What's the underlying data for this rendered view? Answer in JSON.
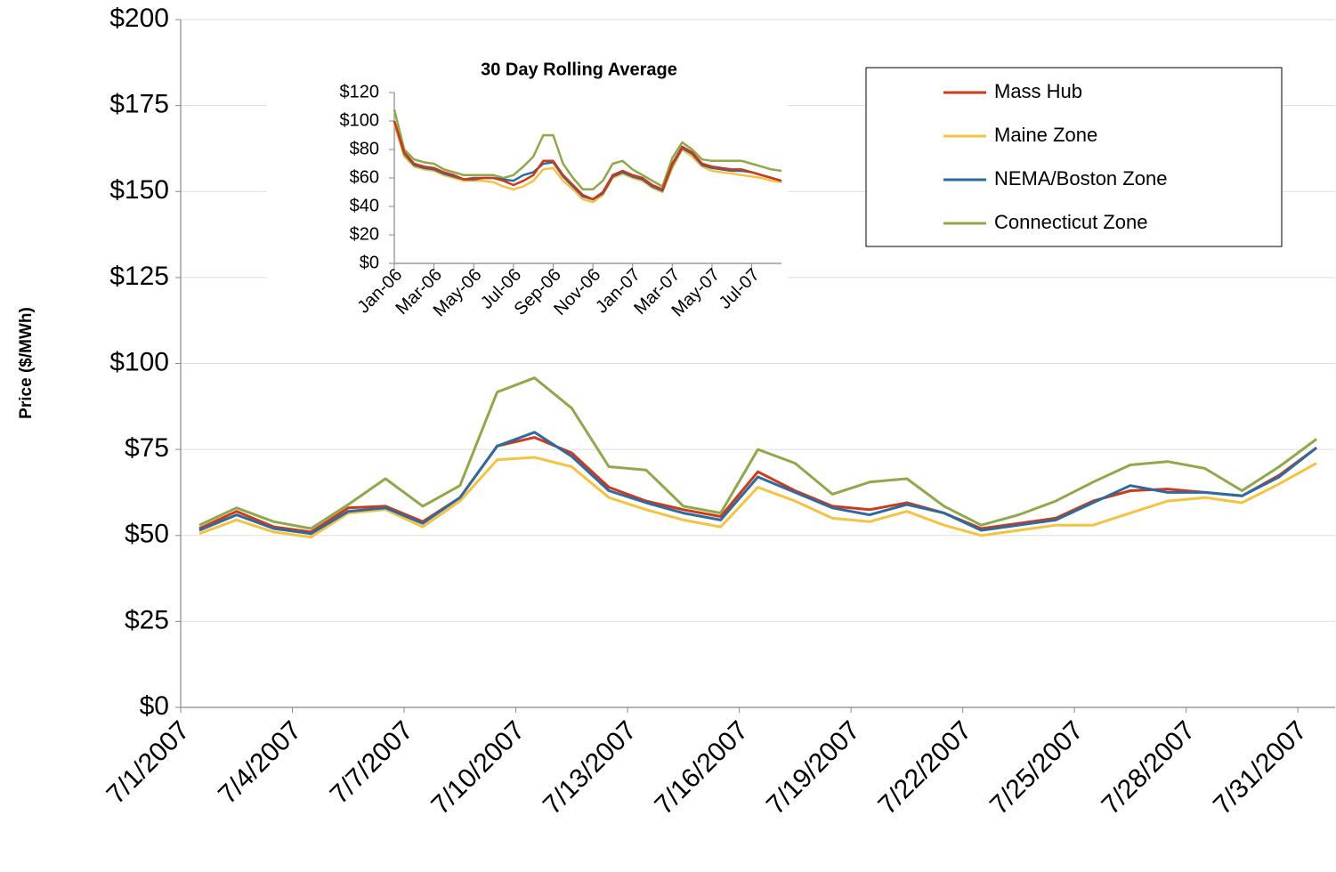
{
  "chart_data": [
    {
      "type": "line",
      "y_label": "Price ($/MWh)",
      "categories": [
        "7/1/2007",
        null,
        null,
        "7/4/2007",
        null,
        null,
        "7/7/2007",
        null,
        null,
        "7/10/2007",
        null,
        null,
        "7/13/2007",
        null,
        null,
        "7/16/2007",
        null,
        null,
        "7/19/2007",
        null,
        null,
        "7/22/2007",
        null,
        null,
        "7/25/2007",
        null,
        null,
        "7/28/2007",
        null,
        null,
        "7/31/2007"
      ],
      "ylim": [
        0,
        200
      ],
      "yticks": [
        {
          "value": 0,
          "label": "$0"
        },
        {
          "value": 25,
          "label": "$25"
        },
        {
          "value": 50,
          "label": "$50"
        },
        {
          "value": 75,
          "label": "$75"
        },
        {
          "value": 100,
          "label": "$100"
        },
        {
          "value": 125,
          "label": "$125"
        },
        {
          "value": 150,
          "label": "$150"
        },
        {
          "value": 175,
          "label": "$175"
        },
        {
          "value": 200,
          "label": "$200"
        }
      ],
      "grid": true,
      "legend": "top-right",
      "series": [
        {
          "name": "Mass Hub",
          "color": "#cc3a1a",
          "values": [
            52,
            57,
            52.5,
            51,
            58,
            58.5,
            54,
            61,
            76,
            78.5,
            74,
            64,
            60,
            57.5,
            55.5,
            68.5,
            63,
            58.5,
            57.5,
            59.5,
            56.5,
            52,
            53.5,
            55,
            60,
            63,
            63.5,
            62.5,
            61.5,
            67.5,
            75.5
          ]
        },
        {
          "name": "Maine Zone",
          "color": "#f5c242",
          "values": [
            50.5,
            54.5,
            51,
            49.5,
            56.5,
            57.5,
            52.5,
            60,
            72,
            72.7,
            70,
            61,
            57.5,
            54.5,
            52.5,
            64,
            60,
            55,
            54,
            57,
            53,
            50,
            51.5,
            53,
            53,
            56.5,
            60,
            61,
            59.5,
            65,
            71
          ]
        },
        {
          "name": "NEMA/Boston Zone",
          "color": "#2e6aa0",
          "values": [
            51.5,
            56,
            52,
            50.5,
            57,
            58,
            53.5,
            61,
            76,
            80,
            73,
            63,
            59.5,
            56.5,
            54.5,
            67,
            62.5,
            58,
            56,
            59,
            56.5,
            51.5,
            53,
            54.5,
            59.5,
            64.5,
            62.5,
            62.5,
            61.5,
            67,
            75.5
          ]
        },
        {
          "name": "Connecticut Zone",
          "color": "#8fa84a",
          "values": [
            53,
            58,
            54,
            52,
            59,
            66.5,
            58.5,
            64.5,
            91.7,
            95.8,
            87,
            70,
            69,
            58.5,
            56.5,
            75,
            71,
            62,
            65.5,
            66.5,
            58.5,
            53,
            56,
            60,
            65.5,
            70.5,
            71.5,
            69.5,
            63,
            70,
            78
          ]
        }
      ]
    },
    {
      "type": "line",
      "title": "30 Day Rolling Average",
      "categories": [
        "Jan-06",
        null,
        null,
        null,
        "Mar-06",
        null,
        null,
        null,
        "May-06",
        null,
        null,
        null,
        "Jul-06",
        null,
        null,
        null,
        "Sep-06",
        null,
        null,
        null,
        "Nov-06",
        null,
        null,
        null,
        "Jan-07",
        null,
        null,
        null,
        "Mar-07",
        null,
        null,
        null,
        "May-07",
        null,
        null,
        null,
        "Jul-07",
        null,
        null,
        null
      ],
      "ylim": [
        0,
        120
      ],
      "yticks": [
        {
          "value": 0,
          "label": "$0"
        },
        {
          "value": 20,
          "label": "$20"
        },
        {
          "value": 40,
          "label": "$40"
        },
        {
          "value": 60,
          "label": "$60"
        },
        {
          "value": 80,
          "label": "$80"
        },
        {
          "value": 100,
          "label": "$100"
        },
        {
          "value": 120,
          "label": "$120"
        }
      ],
      "grid": false,
      "series": [
        {
          "color": "#8fa84a",
          "values": [
            108,
            80,
            73,
            71,
            70,
            66,
            64,
            62,
            62,
            62,
            62,
            60,
            62,
            68,
            75,
            90,
            90,
            70,
            60,
            52,
            52,
            58,
            70,
            72,
            66,
            62,
            58,
            54,
            74,
            85,
            80,
            73,
            72,
            72,
            72,
            72,
            70,
            68,
            66,
            65
          ]
        },
        {
          "color": "#f5c242",
          "values": [
            98,
            75,
            68,
            66,
            65,
            62,
            60,
            58,
            58,
            58,
            57,
            54,
            52,
            54,
            58,
            66,
            67,
            58,
            52,
            45,
            43,
            48,
            60,
            63,
            60,
            58,
            53,
            50,
            67,
            80,
            75,
            68,
            65,
            64,
            63,
            62,
            61,
            60,
            58,
            57
          ]
        },
        {
          "color": "#2e6aa0",
          "values": [
            100,
            77,
            69,
            67,
            66,
            63,
            61,
            59,
            59,
            60,
            60,
            59,
            58,
            62,
            64,
            70,
            71,
            61,
            54,
            47,
            45,
            49,
            61,
            64,
            61,
            59,
            54,
            51,
            69,
            81,
            77,
            69,
            67,
            66,
            65,
            65,
            64,
            62,
            60,
            58
          ]
        },
        {
          "color": "#cc3a1a",
          "values": [
            100,
            78,
            70,
            68,
            67,
            64,
            62,
            59,
            60,
            60,
            60,
            58,
            55,
            58,
            62,
            72,
            72,
            62,
            55,
            48,
            45,
            50,
            62,
            65,
            62,
            60,
            55,
            52,
            70,
            82,
            78,
            70,
            68,
            67,
            66,
            66,
            64,
            62,
            60,
            58
          ]
        }
      ]
    }
  ]
}
